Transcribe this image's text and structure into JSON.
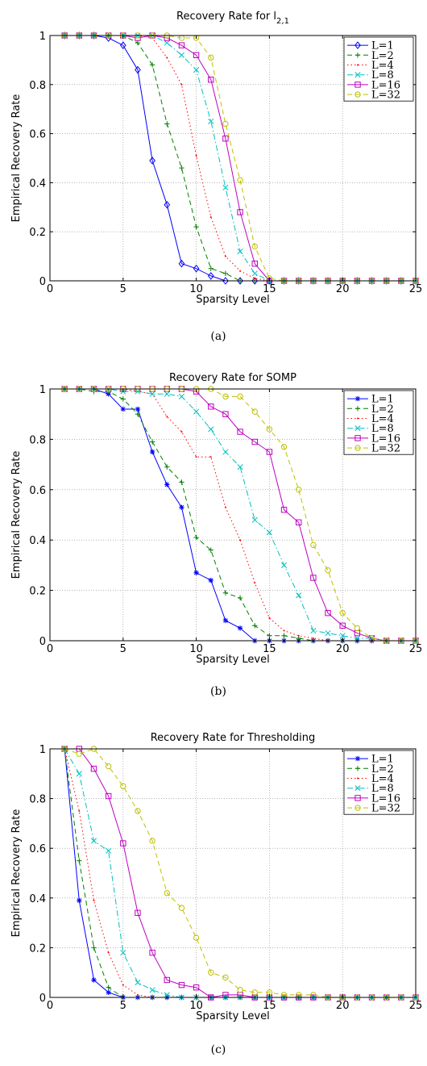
{
  "chart_data": [
    {
      "type": "line",
      "panel": "a",
      "title_main": "Recovery Rate for l",
      "title_sub": "2,1",
      "xlabel": "Sparsity Level",
      "ylabel": "Empirical Recovery Rate",
      "xlim": [
        0,
        25
      ],
      "ylim": [
        0,
        1
      ],
      "xticks": [
        "0",
        "5",
        "10",
        "15",
        "20",
        "25"
      ],
      "yticks": [
        "0",
        "0.2",
        "0.4",
        "0.6",
        "0.8",
        "1"
      ],
      "grid": true,
      "legend_position": "top-right",
      "caption": "(a)",
      "x": [
        1,
        2,
        3,
        4,
        5,
        6,
        7,
        8,
        9,
        10,
        11,
        12,
        13,
        14,
        15,
        16,
        17,
        18,
        19,
        20,
        21,
        22,
        23,
        24,
        25
      ],
      "series": [
        {
          "name": "L=1",
          "color": "#0000ff",
          "dash": "solid",
          "marker": "diamond",
          "values": [
            1,
            1,
            1,
            0.99,
            0.96,
            0.86,
            0.49,
            0.31,
            0.07,
            0.05,
            0.02,
            0,
            0,
            0,
            0,
            0,
            0,
            0,
            0,
            0,
            0,
            0,
            0,
            0,
            0
          ]
        },
        {
          "name": "L=2",
          "color": "#008000",
          "dash": "dashed",
          "marker": "plus",
          "values": [
            1,
            1,
            1,
            1,
            1,
            0.97,
            0.88,
            0.64,
            0.46,
            0.22,
            0.05,
            0.03,
            0,
            0,
            0,
            0,
            0,
            0,
            0,
            0,
            0,
            0,
            0,
            0,
            0
          ]
        },
        {
          "name": "L=4",
          "color": "#ff0000",
          "dash": "dotted",
          "marker": "dot",
          "values": [
            1,
            1,
            1,
            1,
            1,
            1,
            0.99,
            0.91,
            0.8,
            0.51,
            0.26,
            0.1,
            0.04,
            0.01,
            0,
            0,
            0,
            0,
            0,
            0,
            0,
            0,
            0,
            0,
            0
          ]
        },
        {
          "name": "L=8",
          "color": "#00bfbf",
          "dash": "dashdot",
          "marker": "x",
          "values": [
            1,
            1,
            1,
            1,
            1,
            1,
            1,
            0.97,
            0.92,
            0.86,
            0.65,
            0.38,
            0.12,
            0.03,
            0,
            0,
            0,
            0,
            0,
            0,
            0,
            0,
            0,
            0,
            0
          ]
        },
        {
          "name": "L=16",
          "color": "#bf00bf",
          "dash": "solid",
          "marker": "square",
          "values": [
            1,
            1,
            1,
            1,
            1,
            0.99,
            1,
            0.99,
            0.96,
            0.92,
            0.82,
            0.58,
            0.28,
            0.07,
            0,
            0,
            0,
            0,
            0,
            0,
            0,
            0,
            0,
            0,
            0
          ]
        },
        {
          "name": "L=32",
          "color": "#bfbf00",
          "dash": "dashed",
          "marker": "circle",
          "values": [
            1,
            1,
            1,
            1,
            1,
            1,
            1,
            1,
            0.99,
            0.99,
            0.91,
            0.64,
            0.41,
            0.14,
            0.01,
            0,
            0,
            0,
            0,
            0,
            0,
            0,
            0,
            0,
            0
          ]
        }
      ]
    },
    {
      "type": "line",
      "panel": "b",
      "title_main": "Recovery Rate for SOMP",
      "title_sub": "",
      "xlabel": "Sparsity Level",
      "ylabel": "Empirical Recovery Rate",
      "xlim": [
        0,
        25
      ],
      "ylim": [
        0,
        1
      ],
      "xticks": [
        "0",
        "5",
        "10",
        "15",
        "20",
        "25"
      ],
      "yticks": [
        "0",
        "0.2",
        "0.4",
        "0.6",
        "0.8",
        "1"
      ],
      "grid": true,
      "legend_position": "top-right",
      "caption": "(b)",
      "x": [
        1,
        2,
        3,
        4,
        5,
        6,
        7,
        8,
        9,
        10,
        11,
        12,
        13,
        14,
        15,
        16,
        17,
        18,
        19,
        20,
        21,
        22,
        23,
        24,
        25
      ],
      "series": [
        {
          "name": "L=1",
          "color": "#0000ff",
          "dash": "solid",
          "marker": "star",
          "values": [
            1,
            1,
            1,
            0.98,
            0.92,
            0.92,
            0.75,
            0.62,
            0.53,
            0.27,
            0.24,
            0.08,
            0.05,
            0,
            0,
            0,
            0,
            0,
            0,
            0,
            0,
            0,
            0,
            0,
            0
          ]
        },
        {
          "name": "L=2",
          "color": "#008000",
          "dash": "dashed",
          "marker": "plus",
          "values": [
            1,
            1,
            0.99,
            0.99,
            0.96,
            0.9,
            0.79,
            0.69,
            0.63,
            0.41,
            0.36,
            0.19,
            0.17,
            0.06,
            0.02,
            0.02,
            0.01,
            0,
            0,
            0,
            0,
            0,
            0,
            0,
            0
          ]
        },
        {
          "name": "L=4",
          "color": "#ff0000",
          "dash": "dotted",
          "marker": "dot",
          "values": [
            1,
            1,
            1,
            1,
            1,
            0.99,
            0.98,
            0.89,
            0.83,
            0.73,
            0.73,
            0.53,
            0.4,
            0.23,
            0.09,
            0.04,
            0.02,
            0.01,
            0,
            0,
            0,
            0,
            0,
            0,
            0
          ]
        },
        {
          "name": "L=8",
          "color": "#00bfbf",
          "dash": "dashdot",
          "marker": "x",
          "values": [
            1,
            1,
            1,
            1,
            0.99,
            0.99,
            0.98,
            0.98,
            0.97,
            0.91,
            0.84,
            0.75,
            0.69,
            0.48,
            0.43,
            0.3,
            0.18,
            0.04,
            0.03,
            0.02,
            0.01,
            0.01,
            0,
            0,
            0
          ]
        },
        {
          "name": "L=16",
          "color": "#bf00bf",
          "dash": "solid",
          "marker": "square",
          "values": [
            1,
            1,
            1,
            1,
            1,
            1,
            1,
            1,
            1,
            0.99,
            0.93,
            0.9,
            0.83,
            0.79,
            0.75,
            0.52,
            0.47,
            0.25,
            0.11,
            0.06,
            0.03,
            0.01,
            0,
            0,
            0
          ]
        },
        {
          "name": "L=32",
          "color": "#bfbf00",
          "dash": "dashed",
          "marker": "circle",
          "values": [
            1,
            1,
            1,
            1,
            1,
            1,
            1,
            1,
            1,
            1,
            1,
            0.97,
            0.97,
            0.91,
            0.84,
            0.77,
            0.6,
            0.38,
            0.28,
            0.11,
            0.05,
            0.01,
            0,
            0,
            0
          ]
        }
      ]
    },
    {
      "type": "line",
      "panel": "c",
      "title_main": "Recovery Rate for Thresholding",
      "title_sub": "",
      "xlabel": "Sparsity Level",
      "ylabel": "Empirical Recovery Rate",
      "xlim": [
        0,
        25
      ],
      "ylim": [
        0,
        1
      ],
      "xticks": [
        "0",
        "5",
        "10",
        "15",
        "20",
        "25"
      ],
      "yticks": [
        "0",
        "0.2",
        "0.4",
        "0.6",
        "0.8",
        "1"
      ],
      "grid": true,
      "legend_position": "top-right",
      "caption": "(c)",
      "x": [
        1,
        2,
        3,
        4,
        5,
        6,
        7,
        8,
        9,
        10,
        11,
        12,
        13,
        14,
        15,
        16,
        17,
        18,
        19,
        20,
        21,
        22,
        23,
        24,
        25
      ],
      "series": [
        {
          "name": "L=1",
          "color": "#0000ff",
          "dash": "solid",
          "marker": "star",
          "values": [
            1,
            0.39,
            0.07,
            0.02,
            0,
            0,
            0,
            0,
            0,
            0,
            0,
            0,
            0,
            0,
            0,
            0,
            0,
            0,
            0,
            0,
            0,
            0,
            0,
            0,
            0
          ]
        },
        {
          "name": "L=2",
          "color": "#008000",
          "dash": "dashed",
          "marker": "plus",
          "values": [
            1,
            0.55,
            0.2,
            0.04,
            0,
            0,
            0,
            0,
            0,
            0,
            0,
            0,
            0,
            0,
            0,
            0,
            0,
            0,
            0,
            0,
            0,
            0,
            0,
            0,
            0
          ]
        },
        {
          "name": "L=4",
          "color": "#ff0000",
          "dash": "dotted",
          "marker": "dot",
          "values": [
            1,
            0.75,
            0.39,
            0.18,
            0.05,
            0.01,
            0,
            0,
            0,
            0,
            0,
            0,
            0,
            0,
            0,
            0,
            0,
            0,
            0,
            0,
            0,
            0,
            0,
            0,
            0
          ]
        },
        {
          "name": "L=8",
          "color": "#00bfbf",
          "dash": "dashdot",
          "marker": "x",
          "values": [
            1,
            0.9,
            0.63,
            0.59,
            0.18,
            0.06,
            0.03,
            0.01,
            0,
            0,
            0,
            0,
            0,
            0,
            0,
            0,
            0,
            0,
            0,
            0,
            0,
            0,
            0,
            0,
            0
          ]
        },
        {
          "name": "L=16",
          "color": "#bf00bf",
          "dash": "solid",
          "marker": "square",
          "values": [
            1,
            1,
            0.92,
            0.81,
            0.62,
            0.34,
            0.18,
            0.07,
            0.05,
            0.04,
            0,
            0.01,
            0.01,
            0,
            0,
            0,
            0,
            0,
            0,
            0,
            0,
            0,
            0,
            0,
            0
          ]
        },
        {
          "name": "L=32",
          "color": "#bfbf00",
          "dash": "dashed",
          "marker": "circle",
          "values": [
            1,
            0.98,
            1,
            0.93,
            0.85,
            0.75,
            0.63,
            0.42,
            0.36,
            0.24,
            0.1,
            0.08,
            0.03,
            0.02,
            0.02,
            0.01,
            0.01,
            0.01,
            0,
            0,
            0,
            0,
            0,
            0,
            0
          ]
        }
      ]
    }
  ]
}
